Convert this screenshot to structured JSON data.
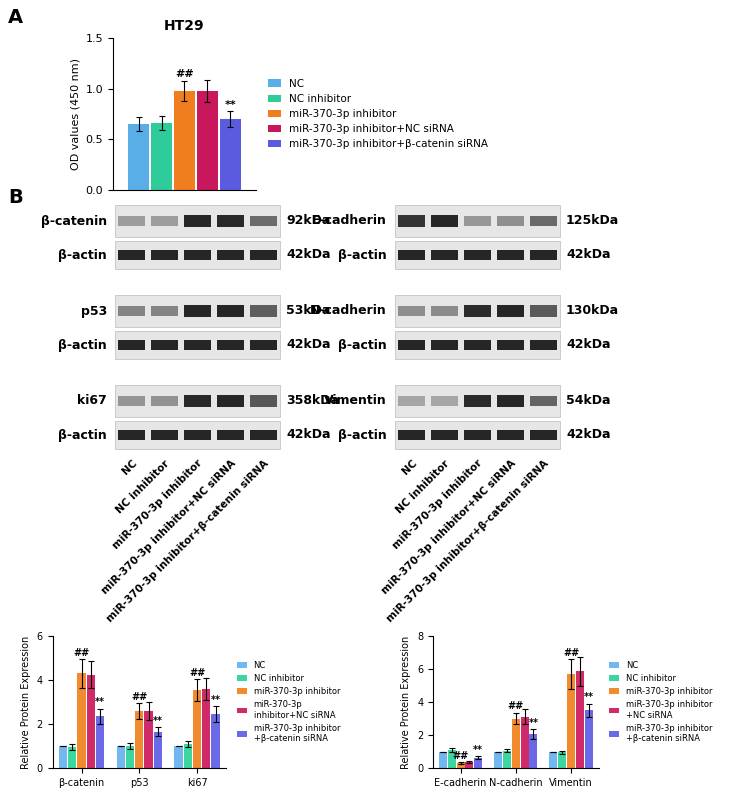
{
  "panel_labels": [
    "A",
    "B"
  ],
  "chart_data": [
    {
      "type": "bar",
      "title": "HT29",
      "y_label": "OD values (450 nm)",
      "categories": [
        null
      ],
      "ylim": [
        0.0,
        1.5
      ],
      "yticks": [
        0.0,
        0.5,
        1.0,
        1.5
      ],
      "tick_labels": "y",
      "grid": false,
      "legend": "center left",
      "data_labels": false,
      "series": [
        {
          "name": "NC",
          "color": "#5aaee8",
          "values": [
            0.65
          ],
          "errors": [
            0.07
          ],
          "annotations": [
            null
          ]
        },
        {
          "name": "NC inhibitor",
          "color": "#2ecc9a",
          "values": [
            0.66
          ],
          "errors": [
            0.07
          ],
          "annotations": [
            null
          ]
        },
        {
          "name": "miR-370-3p inhibitor",
          "color": "#f07d1e",
          "values": [
            0.98
          ],
          "errors": [
            0.1
          ],
          "annotations": [
            "##"
          ]
        },
        {
          "name": "miR-370-3p inhibitor+NC siRNA",
          "color": "#c8175d",
          "values": [
            0.98
          ],
          "errors": [
            0.11
          ],
          "annotations": [
            null
          ]
        },
        {
          "name": "miR-370-3p inhibitor+β-catenin siRNA",
          "color": "#5b5be0",
          "values": [
            0.7
          ],
          "errors": [
            0.08
          ],
          "annotations": [
            "**"
          ]
        }
      ]
    },
    {
      "type": "bar",
      "y_label": "Relative Protein Expression",
      "categories": [
        "β-catenin",
        "p53",
        "ki67"
      ],
      "ylim": [
        0,
        6
      ],
      "yticks": [
        0,
        2,
        4,
        6
      ],
      "grid": false,
      "legend": "center left",
      "data_labels": false,
      "series": [
        {
          "name": "NC",
          "color": "#72b8f0",
          "values": [
            1.0,
            1.0,
            1.0
          ],
          "errors": [
            0.0,
            0.0,
            0.0
          ],
          "annotations": [
            null,
            null,
            null
          ]
        },
        {
          "name": "NC inhibitor",
          "color": "#3dd6a0",
          "values": [
            0.95,
            1.0,
            1.1
          ],
          "errors": [
            0.15,
            0.15,
            0.15
          ],
          "annotations": [
            null,
            null,
            null
          ]
        },
        {
          "name": "miR-370-3p inhibitor",
          "color": "#f28a2e",
          "values": [
            4.3,
            2.6,
            3.55
          ],
          "errors": [
            0.65,
            0.35,
            0.5
          ],
          "annotations": [
            "##",
            "##",
            "##"
          ]
        },
        {
          "name": "miR-370-3p\ninhibitor+NC siRNA",
          "color": "#d02a6a",
          "values": [
            4.25,
            2.6,
            3.6
          ],
          "errors": [
            0.6,
            0.4,
            0.5
          ],
          "annotations": [
            null,
            null,
            null
          ]
        },
        {
          "name": "miR-370-3p inhibitor\n+β-catenin siRNA",
          "color": "#6a6ae6",
          "values": [
            2.35,
            1.65,
            2.45
          ],
          "errors": [
            0.35,
            0.2,
            0.35
          ],
          "annotations": [
            "**",
            "**",
            "**"
          ]
        }
      ]
    },
    {
      "type": "bar",
      "y_label": "Relative Protein Expression",
      "categories": [
        "E-cadherin",
        "N-cadherin",
        "Vimentin"
      ],
      "ylim": [
        0,
        8
      ],
      "yticks": [
        0,
        2,
        4,
        6,
        8
      ],
      "grid": false,
      "legend": "center left",
      "data_labels": false,
      "series": [
        {
          "name": "NC",
          "color": "#72b8f0",
          "values": [
            1.0,
            1.0,
            1.0
          ],
          "errors": [
            0.0,
            0.0,
            0.0
          ],
          "annotations": [
            null,
            null,
            null
          ]
        },
        {
          "name": "NC inhibitor",
          "color": "#3dd6a0",
          "values": [
            1.1,
            1.05,
            0.95
          ],
          "errors": [
            0.1,
            0.1,
            0.1
          ],
          "annotations": [
            null,
            null,
            null
          ]
        },
        {
          "name": "miR-370-3p inhibitor",
          "color": "#f28a2e",
          "values": [
            0.3,
            3.0,
            5.7
          ],
          "errors": [
            0.05,
            0.35,
            0.9
          ],
          "annotations": [
            "##",
            "##",
            "##"
          ]
        },
        {
          "name": "miR-370-3p inhibitor\n+NC siRNA",
          "color": "#d02a6a",
          "values": [
            0.35,
            3.1,
            5.85
          ],
          "errors": [
            0.05,
            0.45,
            0.9
          ],
          "annotations": [
            null,
            null,
            null
          ]
        },
        {
          "name": "miR-370-3p inhibitor\n+β-catenin siRNA",
          "color": "#6a6ae6",
          "values": [
            0.62,
            2.05,
            3.5
          ],
          "errors": [
            0.08,
            0.3,
            0.4
          ],
          "annotations": [
            "**",
            "**",
            "**"
          ]
        }
      ]
    }
  ],
  "blots": [
    {
      "protein": "β-catenin",
      "size": "92kDa",
      "loading": "β-actin",
      "loading_size": "42kDa"
    },
    {
      "protein": "p53",
      "size": "53kDa",
      "loading": "β-actin",
      "loading_size": "42kDa"
    },
    {
      "protein": "ki67",
      "size": "358kDa",
      "loading": "β-actin",
      "loading_size": "42kDa"
    },
    {
      "protein": "E-cadherin",
      "size": "125kDa",
      "loading": "β-actin",
      "loading_size": "42kDa"
    },
    {
      "protein": "N-cadherin",
      "size": "130kDa",
      "loading": "β-actin",
      "loading_size": "42kDa"
    },
    {
      "protein": "Vimentin",
      "size": "54kDa",
      "loading": "β-actin",
      "loading_size": "42kDa"
    }
  ]
}
